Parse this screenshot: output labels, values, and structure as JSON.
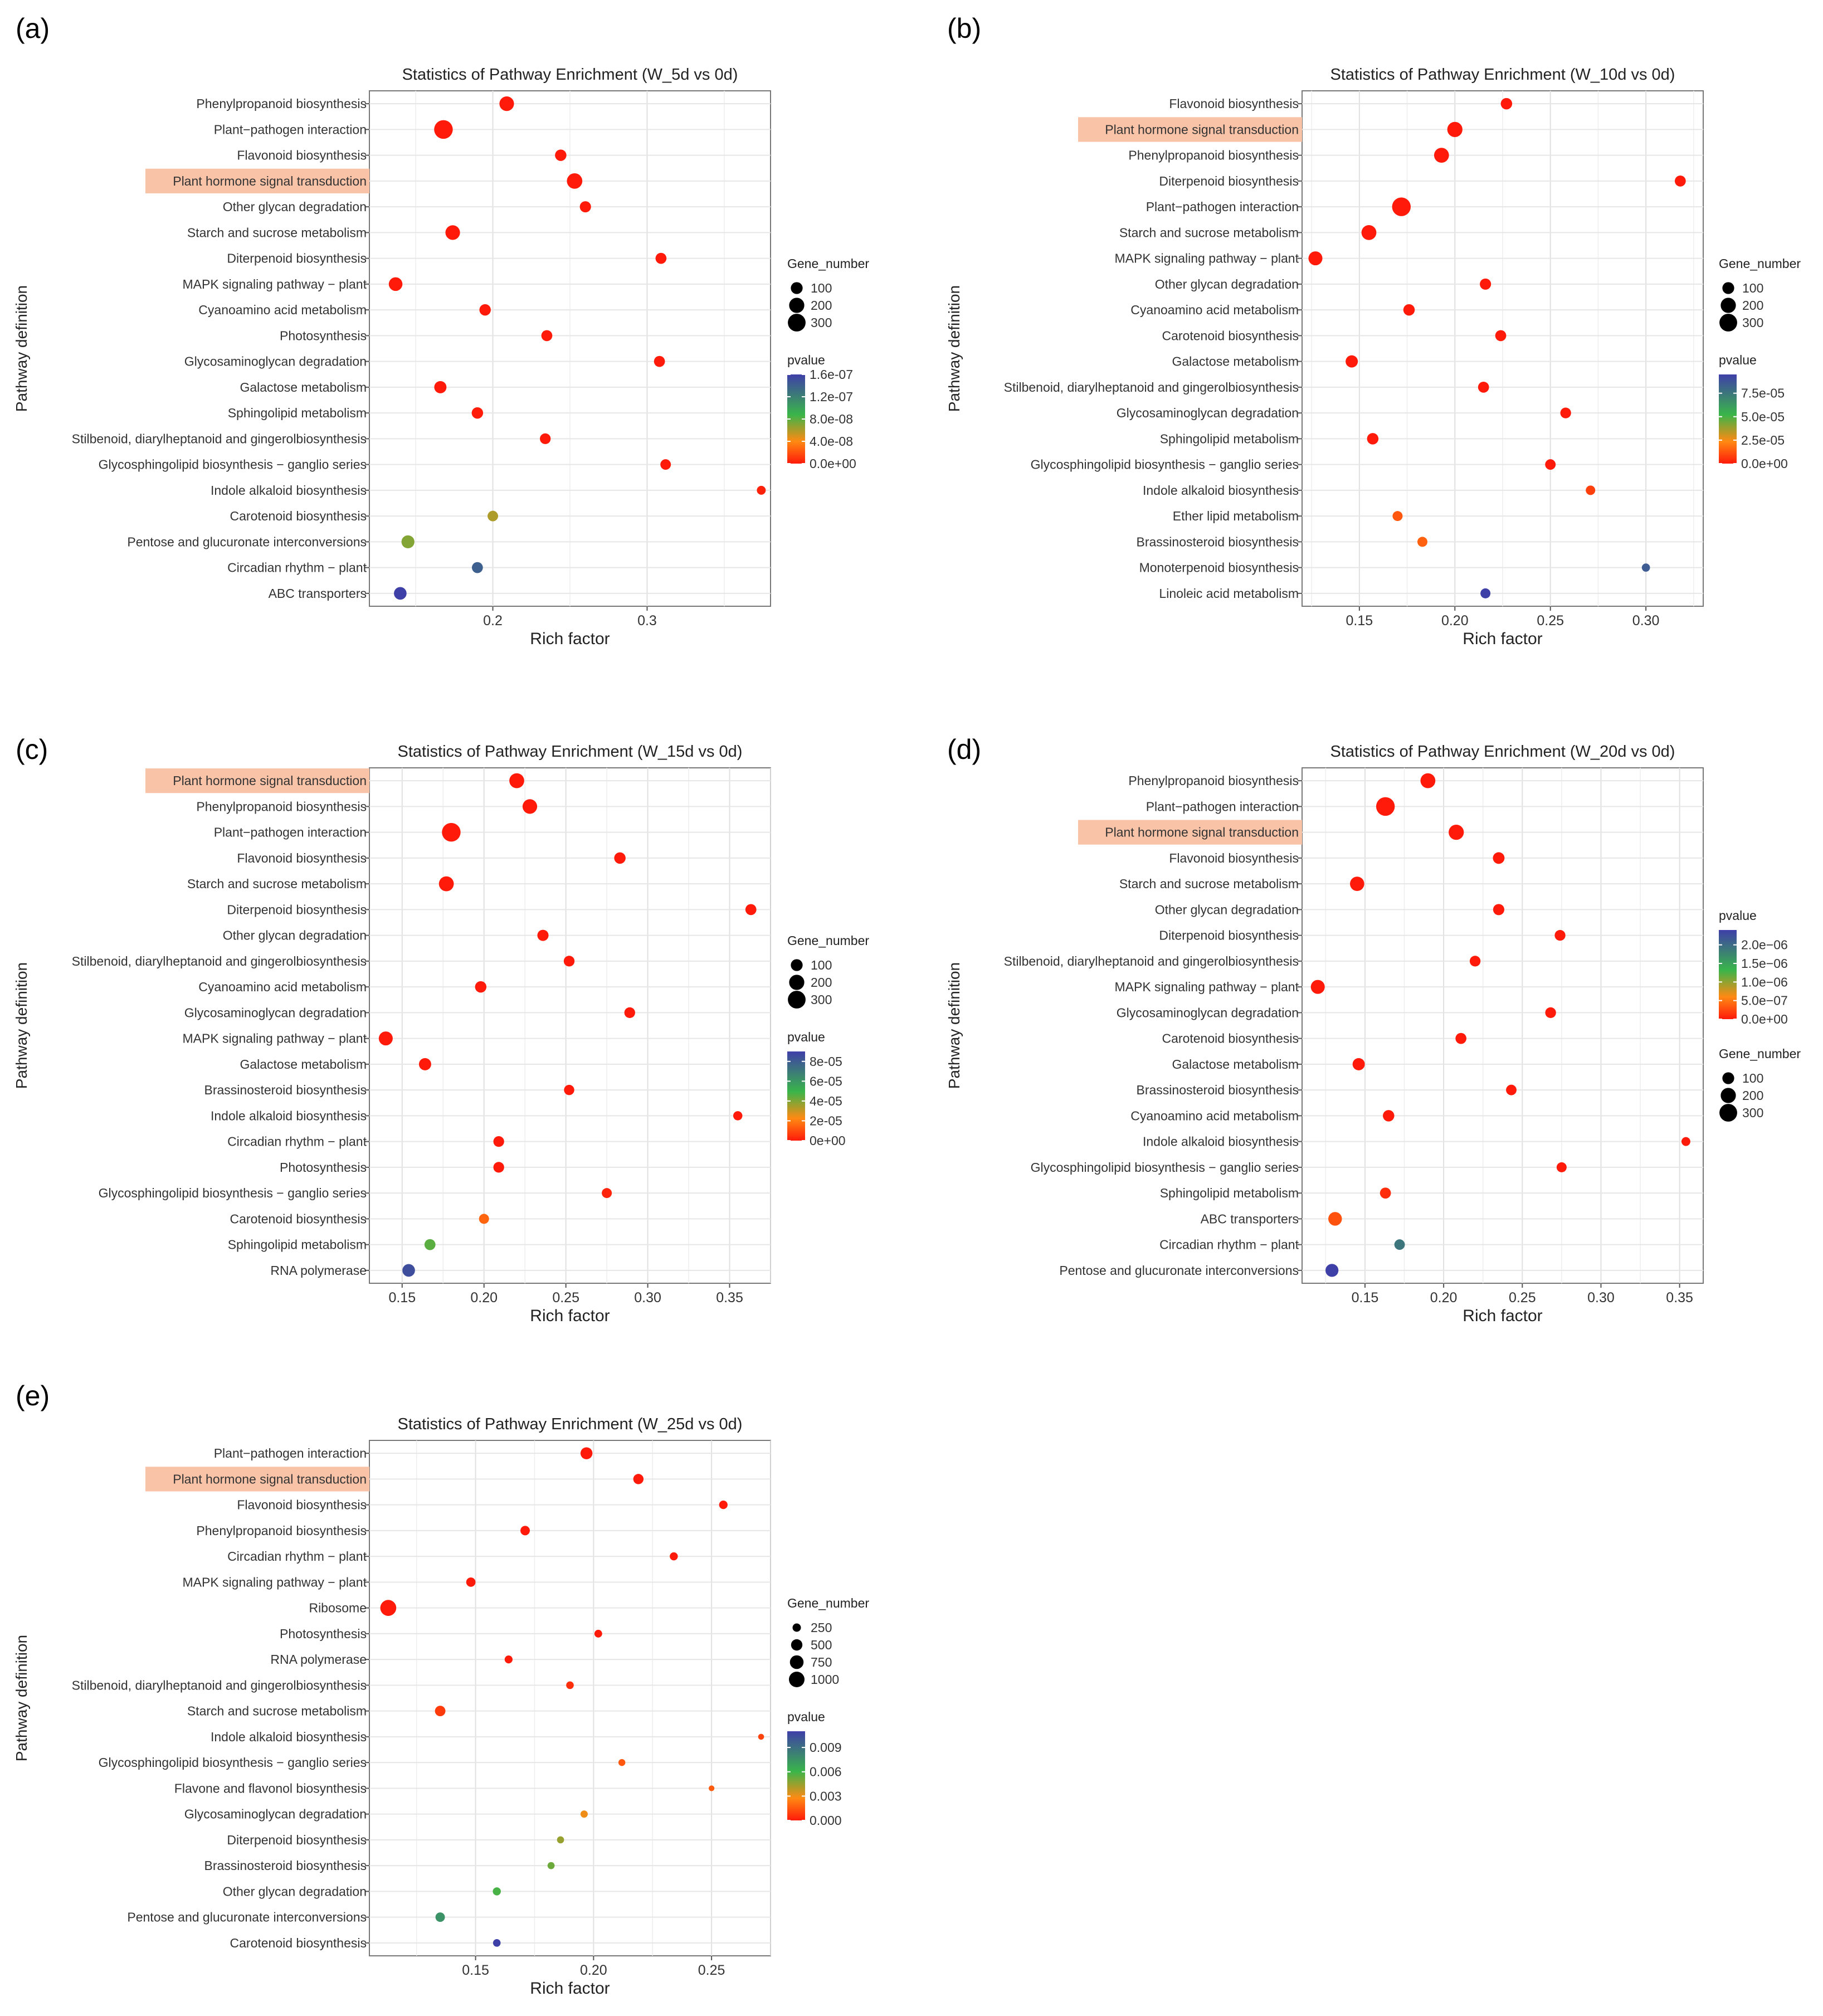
{
  "gene_number_title": "Gene_number",
  "pvalue_title": "pvalue",
  "colors": {
    "low": "#ff1a0a",
    "mid1": "#ff8a12",
    "mid2": "#39b54a",
    "high": "#3f3fa8",
    "highlight": "#f9c3a8"
  },
  "chart_data": [
    {
      "panel": "(a)",
      "type": "scatter",
      "title": "Statistics of Pathway Enrichment (W_5d vs 0d)",
      "xlabel": "Rich factor",
      "ylabel": "Pathway definition",
      "xlim": [
        0.12,
        0.38
      ],
      "xticks": [
        0.2,
        0.3
      ],
      "xtick_labels": [
        "0.2",
        "0.3"
      ],
      "highlight": "Plant hormone signal transduction",
      "size_legend": {
        "values": [
          100,
          200,
          300
        ],
        "labels": [
          "100",
          "200",
          "300"
        ]
      },
      "color_legend": {
        "max": 1.6e-07,
        "ticks": [
          1.6e-07,
          1.2e-07,
          8e-08,
          4e-08,
          0
        ],
        "labels": [
          "1.6e-07",
          "1.2e-07",
          "8.0e-08",
          "4.0e-08",
          "0.0e+00"
        ]
      },
      "legend_order": "size-first",
      "points": [
        {
          "pathway": "Phenylpropanoid biosynthesis",
          "x": 0.209,
          "size": 180,
          "p": 0
        },
        {
          "pathway": "Plant−pathogen interaction",
          "x": 0.168,
          "size": 340,
          "p": 0
        },
        {
          "pathway": "Flavonoid biosynthesis",
          "x": 0.244,
          "size": 90,
          "p": 0
        },
        {
          "pathway": "Plant hormone signal transduction",
          "x": 0.253,
          "size": 210,
          "p": 0
        },
        {
          "pathway": "Other glycan degradation",
          "x": 0.26,
          "size": 85,
          "p": 0
        },
        {
          "pathway": "Starch and sucrose metabolism",
          "x": 0.174,
          "size": 180,
          "p": 0
        },
        {
          "pathway": "Diterpenoid biosynthesis",
          "x": 0.309,
          "size": 80,
          "p": 0
        },
        {
          "pathway": "MAPK signaling pathway − plant",
          "x": 0.137,
          "size": 150,
          "p": 0
        },
        {
          "pathway": "Cyanoamino acid metabolism",
          "x": 0.195,
          "size": 90,
          "p": 0
        },
        {
          "pathway": "Photosynthesis",
          "x": 0.235,
          "size": 80,
          "p": 0
        },
        {
          "pathway": "Glycosaminoglycan degradation",
          "x": 0.308,
          "size": 80,
          "p": 0
        },
        {
          "pathway": "Galactose metabolism",
          "x": 0.166,
          "size": 110,
          "p": 0
        },
        {
          "pathway": "Sphingolipid metabolism",
          "x": 0.19,
          "size": 90,
          "p": 1e-09
        },
        {
          "pathway": "Stilbenoid, diarylheptanoid and gingerolbiosynthesis",
          "x": 0.234,
          "size": 75,
          "p": 0
        },
        {
          "pathway": "Glycosphingolipid biosynthesis − ganglio series",
          "x": 0.312,
          "size": 70,
          "p": 0
        },
        {
          "pathway": "Indole alkaloid biosynthesis",
          "x": 0.374,
          "size": 40,
          "p": 3e-09
        },
        {
          "pathway": "Carotenoid biosynthesis",
          "x": 0.2,
          "size": 70,
          "p": 6e-08
        },
        {
          "pathway": "Pentose and glucuronate interconversions",
          "x": 0.145,
          "size": 130,
          "p": 7e-08
        },
        {
          "pathway": "Circadian rhythm − plant",
          "x": 0.19,
          "size": 80,
          "p": 1.4e-07
        },
        {
          "pathway": "ABC transporters",
          "x": 0.14,
          "size": 120,
          "p": 1.6e-07
        }
      ]
    },
    {
      "panel": "(b)",
      "type": "scatter",
      "title": "Statistics of Pathway Enrichment (W_10d vs 0d)",
      "xlabel": "Rich factor",
      "ylabel": "Pathway definition",
      "xlim": [
        0.12,
        0.33
      ],
      "xticks": [
        0.15,
        0.2,
        0.25,
        0.3
      ],
      "xtick_labels": [
        "0.15",
        "0.20",
        "0.25",
        "0.30"
      ],
      "highlight": "Plant hormone signal transduction",
      "size_legend": {
        "values": [
          100,
          200,
          300
        ],
        "labels": [
          "100",
          "200",
          "300"
        ]
      },
      "color_legend": {
        "max": 9.5e-05,
        "ticks": [
          7.5e-05,
          5e-05,
          2.5e-05,
          0
        ],
        "labels": [
          "7.5e-05",
          "5.0e-05",
          "2.5e-05",
          "0.0e+00"
        ]
      },
      "legend_order": "size-first",
      "points": [
        {
          "pathway": "Flavonoid biosynthesis",
          "x": 0.227,
          "size": 90,
          "p": 0
        },
        {
          "pathway": "Plant hormone signal transduction",
          "x": 0.2,
          "size": 200,
          "p": 0
        },
        {
          "pathway": "Phenylpropanoid biosynthesis",
          "x": 0.193,
          "size": 190,
          "p": 0
        },
        {
          "pathway": "Diterpenoid biosynthesis",
          "x": 0.318,
          "size": 80,
          "p": 0
        },
        {
          "pathway": "Plant−pathogen interaction",
          "x": 0.172,
          "size": 340,
          "p": 0
        },
        {
          "pathway": "Starch and sucrose metabolism",
          "x": 0.155,
          "size": 190,
          "p": 0
        },
        {
          "pathway": "MAPK signaling pathway − plant",
          "x": 0.127,
          "size": 160,
          "p": 0
        },
        {
          "pathway": "Other glycan degradation",
          "x": 0.216,
          "size": 85,
          "p": 0
        },
        {
          "pathway": "Cyanoamino acid metabolism",
          "x": 0.176,
          "size": 90,
          "p": 0
        },
        {
          "pathway": "Carotenoid biosynthesis",
          "x": 0.224,
          "size": 80,
          "p": 0
        },
        {
          "pathway": "Galactose metabolism",
          "x": 0.146,
          "size": 110,
          "p": 0
        },
        {
          "pathway": "Stilbenoid, diarylheptanoid and gingerolbiosynthesis",
          "x": 0.215,
          "size": 80,
          "p": 0
        },
        {
          "pathway": "Glycosaminoglycan degradation",
          "x": 0.258,
          "size": 75,
          "p": 0
        },
        {
          "pathway": "Sphingolipid metabolism",
          "x": 0.157,
          "size": 90,
          "p": 0
        },
        {
          "pathway": "Glycosphingolipid biosynthesis − ganglio series",
          "x": 0.25,
          "size": 70,
          "p": 0
        },
        {
          "pathway": "Indole alkaloid biosynthesis",
          "x": 0.271,
          "size": 50,
          "p": 8e-06
        },
        {
          "pathway": "Ether lipid metabolism",
          "x": 0.17,
          "size": 60,
          "p": 1.3e-05
        },
        {
          "pathway": "Brassinosteroid biosynthesis",
          "x": 0.183,
          "size": 60,
          "p": 1.5e-05
        },
        {
          "pathway": "Monoterpenoid biosynthesis",
          "x": 0.3,
          "size": 30,
          "p": 8.5e-05
        },
        {
          "pathway": "Linoleic acid metabolism",
          "x": 0.216,
          "size": 60,
          "p": 9.5e-05
        }
      ]
    },
    {
      "panel": "(c)",
      "type": "scatter",
      "title": "Statistics of Pathway Enrichment (W_15d vs 0d)",
      "xlabel": "Rich factor",
      "ylabel": "Pathway definition",
      "xlim": [
        0.13,
        0.375
      ],
      "xticks": [
        0.15,
        0.2,
        0.25,
        0.3,
        0.35
      ],
      "xtick_labels": [
        "0.15",
        "0.20",
        "0.25",
        "0.30",
        "0.35"
      ],
      "highlight": "Plant hormone signal transduction",
      "size_legend": {
        "values": [
          100,
          200,
          300
        ],
        "labels": [
          "100",
          "200",
          "300"
        ]
      },
      "color_legend": {
        "max": 9e-05,
        "ticks": [
          8e-05,
          6e-05,
          4e-05,
          2e-05,
          0
        ],
        "labels": [
          "8e-05",
          "6e-05",
          "4e-05",
          "2e-05",
          "0e+00"
        ]
      },
      "legend_order": "size-first",
      "points": [
        {
          "pathway": "Plant hormone signal transduction",
          "x": 0.22,
          "size": 190,
          "p": 0
        },
        {
          "pathway": "Phenylpropanoid biosynthesis",
          "x": 0.228,
          "size": 180,
          "p": 0
        },
        {
          "pathway": "Plant−pathogen interaction",
          "x": 0.18,
          "size": 340,
          "p": 0
        },
        {
          "pathway": "Flavonoid biosynthesis",
          "x": 0.283,
          "size": 90,
          "p": 0
        },
        {
          "pathway": "Starch and sucrose metabolism",
          "x": 0.177,
          "size": 190,
          "p": 0
        },
        {
          "pathway": "Diterpenoid biosynthesis",
          "x": 0.363,
          "size": 80,
          "p": 0
        },
        {
          "pathway": "Other glycan degradation",
          "x": 0.236,
          "size": 85,
          "p": 0
        },
        {
          "pathway": "Stilbenoid, diarylheptanoid and gingerolbiosynthesis",
          "x": 0.252,
          "size": 75,
          "p": 0
        },
        {
          "pathway": "Cyanoamino acid metabolism",
          "x": 0.198,
          "size": 90,
          "p": 0
        },
        {
          "pathway": "Glycosaminoglycan degradation",
          "x": 0.289,
          "size": 75,
          "p": 0
        },
        {
          "pathway": "MAPK signaling pathway − plant",
          "x": 0.14,
          "size": 160,
          "p": 0
        },
        {
          "pathway": "Galactose metabolism",
          "x": 0.164,
          "size": 110,
          "p": 0
        },
        {
          "pathway": "Brassinosteroid biosynthesis",
          "x": 0.252,
          "size": 65,
          "p": 0
        },
        {
          "pathway": "Indole alkaloid biosynthesis",
          "x": 0.355,
          "size": 45,
          "p": 0
        },
        {
          "pathway": "Circadian rhythm − plant",
          "x": 0.209,
          "size": 75,
          "p": 0
        },
        {
          "pathway": "Photosynthesis",
          "x": 0.209,
          "size": 75,
          "p": 0
        },
        {
          "pathway": "Glycosphingolipid biosynthesis − ganglio series",
          "x": 0.275,
          "size": 60,
          "p": 2e-06
        },
        {
          "pathway": "Carotenoid biosynthesis",
          "x": 0.2,
          "size": 60,
          "p": 1.5e-05
        },
        {
          "pathway": "Sphingolipid metabolism",
          "x": 0.167,
          "size": 80,
          "p": 4.5e-05
        },
        {
          "pathway": "RNA polymerase",
          "x": 0.154,
          "size": 120,
          "p": 8.5e-05
        }
      ]
    },
    {
      "panel": "(d)",
      "type": "scatter",
      "title": "Statistics of Pathway Enrichment (W_20d vs 0d)",
      "xlabel": "Rich factor",
      "ylabel": "Pathway definition",
      "xlim": [
        0.11,
        0.365
      ],
      "xticks": [
        0.15,
        0.2,
        0.25,
        0.3,
        0.35
      ],
      "xtick_labels": [
        "0.15",
        "0.20",
        "0.25",
        "0.30",
        "0.35"
      ],
      "highlight": "Plant hormone signal transduction",
      "size_legend": {
        "values": [
          100,
          200,
          300
        ],
        "labels": [
          "100",
          "200",
          "300"
        ]
      },
      "color_legend": {
        "max": 2.4e-06,
        "ticks": [
          2e-06,
          1.5e-06,
          1e-06,
          5e-07,
          0
        ],
        "labels": [
          "2.0e−06",
          "1.5e−06",
          "1.0e−06",
          "5.0e−07",
          "0.0e+00"
        ]
      },
      "legend_order": "color-first",
      "points": [
        {
          "pathway": "Phenylpropanoid biosynthesis",
          "x": 0.19,
          "size": 190,
          "p": 0
        },
        {
          "pathway": "Plant−pathogen interaction",
          "x": 0.163,
          "size": 340,
          "p": 0
        },
        {
          "pathway": "Plant hormone signal transduction",
          "x": 0.208,
          "size": 200,
          "p": 0
        },
        {
          "pathway": "Flavonoid biosynthesis",
          "x": 0.235,
          "size": 95,
          "p": 0
        },
        {
          "pathway": "Starch and sucrose metabolism",
          "x": 0.145,
          "size": 170,
          "p": 0
        },
        {
          "pathway": "Other glycan degradation",
          "x": 0.235,
          "size": 85,
          "p": 0
        },
        {
          "pathway": "Diterpenoid biosynthesis",
          "x": 0.274,
          "size": 75,
          "p": 0
        },
        {
          "pathway": "Stilbenoid, diarylheptanoid and gingerolbiosynthesis",
          "x": 0.22,
          "size": 75,
          "p": 0
        },
        {
          "pathway": "MAPK signaling pathway − plant",
          "x": 0.12,
          "size": 160,
          "p": 0
        },
        {
          "pathway": "Glycosaminoglycan degradation",
          "x": 0.268,
          "size": 75,
          "p": 0
        },
        {
          "pathway": "Carotenoid biosynthesis",
          "x": 0.211,
          "size": 80,
          "p": 0
        },
        {
          "pathway": "Galactose metabolism",
          "x": 0.146,
          "size": 110,
          "p": 0
        },
        {
          "pathway": "Brassinosteroid biosynthesis",
          "x": 0.243,
          "size": 70,
          "p": 0
        },
        {
          "pathway": "Cyanoamino acid metabolism",
          "x": 0.165,
          "size": 90,
          "p": 0
        },
        {
          "pathway": "Indole alkaloid biosynthesis",
          "x": 0.354,
          "size": 40,
          "p": 0
        },
        {
          "pathway": "Glycosphingolipid biosynthesis − ganglio series",
          "x": 0.275,
          "size": 60,
          "p": 0
        },
        {
          "pathway": "Sphingolipid metabolism",
          "x": 0.163,
          "size": 80,
          "p": 1e-07
        },
        {
          "pathway": "ABC transporters",
          "x": 0.131,
          "size": 150,
          "p": 3e-07
        },
        {
          "pathway": "Circadian rhythm − plant",
          "x": 0.172,
          "size": 70,
          "p": 1.9e-06
        },
        {
          "pathway": "Pentose and glucuronate interconversions",
          "x": 0.129,
          "size": 130,
          "p": 2.4e-06
        }
      ]
    },
    {
      "panel": "(e)",
      "type": "scatter",
      "title": "Statistics of Pathway Enrichment (W_25d vs 0d)",
      "xlabel": "Rich factor",
      "ylabel": "Pathway definition",
      "xlim": [
        0.105,
        0.275
      ],
      "xticks": [
        0.15,
        0.2,
        0.25
      ],
      "xtick_labels": [
        "0.15",
        "0.20",
        "0.25"
      ],
      "highlight": "Plant hormone signal transduction",
      "size_legend": {
        "values": [
          250,
          500,
          750,
          1000
        ],
        "labels": [
          "250",
          "500",
          "750",
          "1000"
        ]
      },
      "color_legend": {
        "max": 0.011,
        "ticks": [
          0.009,
          0.006,
          0.003,
          0
        ],
        "labels": [
          "0.009",
          "0.006",
          "0.003",
          "0.000"
        ]
      },
      "legend_order": "size-first",
      "points": [
        {
          "pathway": "Plant−pathogen interaction",
          "x": 0.197,
          "size": 560,
          "p": 0
        },
        {
          "pathway": "Plant hormone signal transduction",
          "x": 0.219,
          "size": 400,
          "p": 0
        },
        {
          "pathway": "Flavonoid biosynthesis",
          "x": 0.255,
          "size": 260,
          "p": 0
        },
        {
          "pathway": "Phenylpropanoid biosynthesis",
          "x": 0.171,
          "size": 330,
          "p": 0
        },
        {
          "pathway": "Circadian rhythm − plant",
          "x": 0.234,
          "size": 230,
          "p": 0
        },
        {
          "pathway": "MAPK signaling pathway − plant",
          "x": 0.148,
          "size": 320,
          "p": 0
        },
        {
          "pathway": "Ribosome",
          "x": 0.113,
          "size": 1050,
          "p": 0
        },
        {
          "pathway": "Photosynthesis",
          "x": 0.202,
          "size": 210,
          "p": 0
        },
        {
          "pathway": "RNA polymerase",
          "x": 0.164,
          "size": 220,
          "p": 0
        },
        {
          "pathway": "Stilbenoid, diarylheptanoid and gingerolbiosynthesis",
          "x": 0.19,
          "size": 200,
          "p": 0.0005
        },
        {
          "pathway": "Starch and sucrose metabolism",
          "x": 0.135,
          "size": 420,
          "p": 0.0008
        },
        {
          "pathway": "Indole alkaloid biosynthesis",
          "x": 0.271,
          "size": 110,
          "p": 0.001
        },
        {
          "pathway": "Glycosphingolipid biosynthesis − ganglio series",
          "x": 0.212,
          "size": 160,
          "p": 0.0015
        },
        {
          "pathway": "Flavone and flavonol biosynthesis",
          "x": 0.25,
          "size": 100,
          "p": 0.0016
        },
        {
          "pathway": "Glycosaminoglycan degradation",
          "x": 0.196,
          "size": 180,
          "p": 0.003
        },
        {
          "pathway": "Diterpenoid biosynthesis",
          "x": 0.186,
          "size": 170,
          "p": 0.0045
        },
        {
          "pathway": "Brassinosteroid biosynthesis",
          "x": 0.182,
          "size": 170,
          "p": 0.0052
        },
        {
          "pathway": "Other glycan degradation",
          "x": 0.159,
          "size": 230,
          "p": 0.0058
        },
        {
          "pathway": "Pentose and glucuronate interconversions",
          "x": 0.135,
          "size": 330,
          "p": 0.0075
        },
        {
          "pathway": "Carotenoid biosynthesis",
          "x": 0.159,
          "size": 200,
          "p": 0.011
        }
      ]
    }
  ]
}
